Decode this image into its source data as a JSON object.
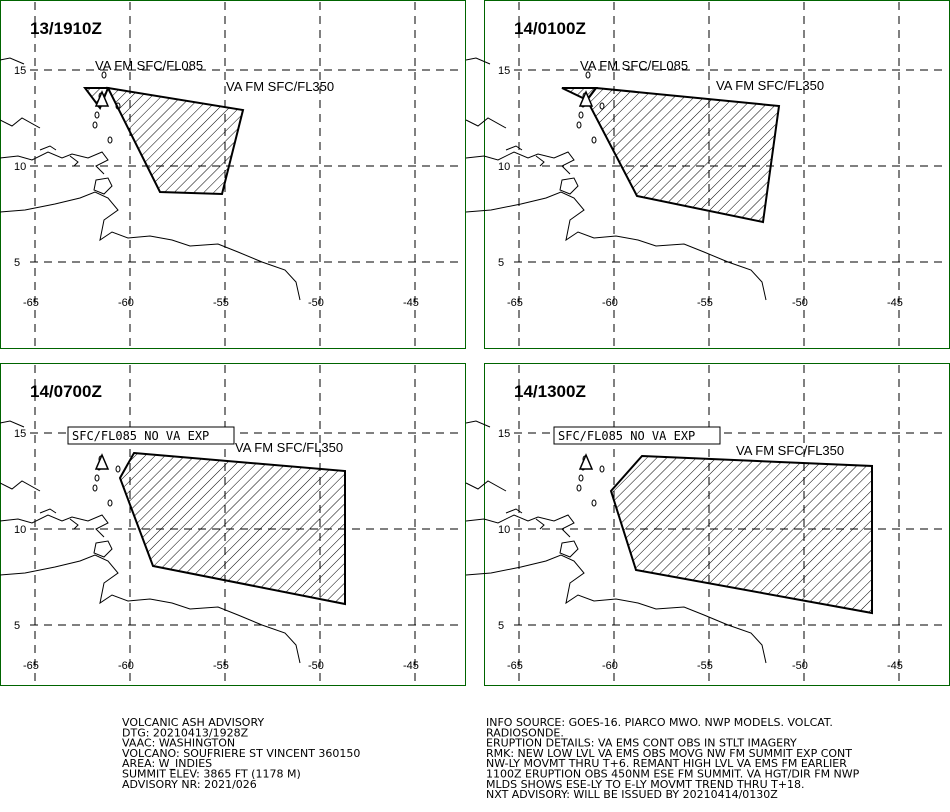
{
  "panels": [
    {
      "time": "13/1910Z",
      "labels": [
        "VA FM SFC/FL085",
        "VA FM SFC/FL350"
      ]
    },
    {
      "time": "14/0100Z",
      "labels": [
        "VA FM SFC/FL085",
        "VA FM SFC/FL350"
      ]
    },
    {
      "time": "14/0700Z",
      "labels": [
        "SFC/FL085 NO VA EXP",
        "VA FM SFC/FL350"
      ]
    },
    {
      "time": "14/1300Z",
      "labels": [
        "SFC/FL085 NO VA EXP",
        "VA FM SFC/FL350"
      ]
    }
  ],
  "axes": {
    "lat": [
      "15",
      "10",
      "5"
    ],
    "lon": [
      "-65",
      "-60",
      "-55",
      "-50",
      "-45"
    ]
  },
  "advisory": {
    "left": [
      "VOLCANIC ASH ADVISORY",
      "DTG: 20210413/1928Z",
      "VAAC: WASHINGTON",
      "VOLCANO: SOUFRIERE ST VINCENT 360150",
      "AREA: W_INDIES",
      "SUMMIT ELEV: 3865 FT (1178 M)",
      "ADVISORY NR: 2021/026"
    ],
    "right": [
      "INFO SOURCE: GOES-16. PIARCO MWO. NWP MODELS. VOLCAT.",
      "RADIOSONDE.",
      "ERUPTION DETAILS: VA EMS CONT OBS IN STLT IMAGERY",
      "RMK: NEW LOW LVL VA EMS OBS MOVG NW FM SUMMIT EXP CONT",
      "NW-LY MOVMT THRU T+6. REMANT HIGH LVL VA EMS FM EARLIER",
      "1100Z ERUPTION OBS 450NM ESE FM SUMMIT. VA HGT/DIR FM NWP",
      "MLDS SHOWS ESE-LY TO E-LY MOVMT TREND THRU T+18.",
      "NXT ADVISORY: WILL BE ISSUED BY 20210414/0130Z"
    ]
  }
}
